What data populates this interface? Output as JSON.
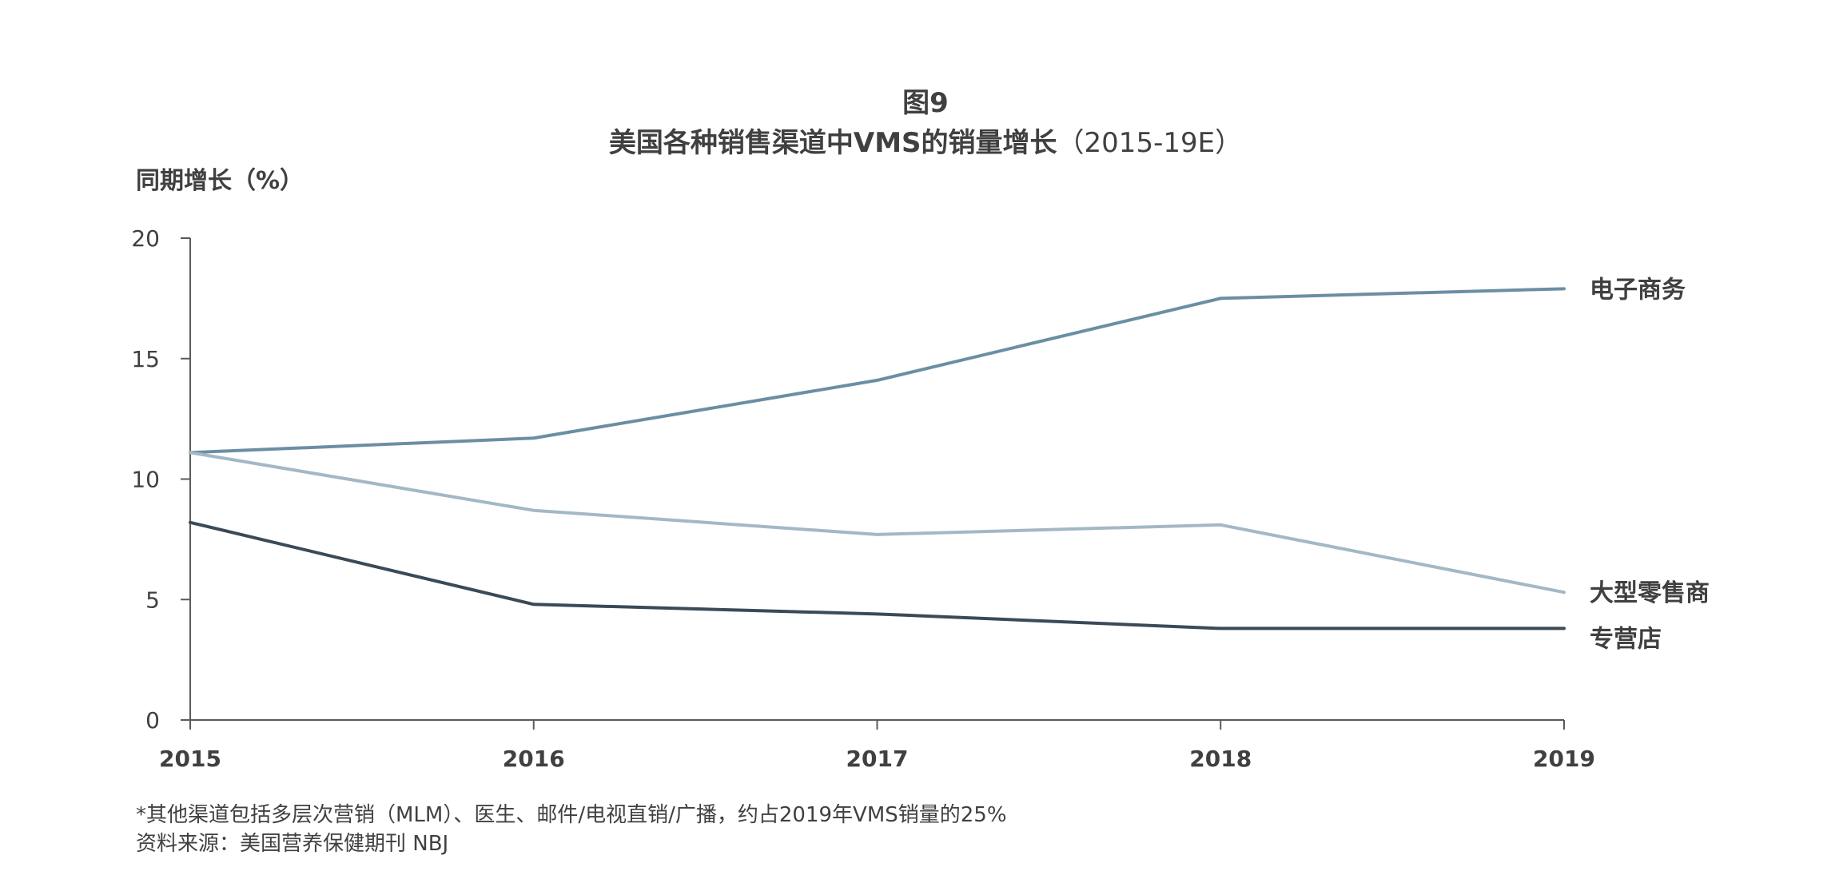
{
  "figure": {
    "label": "图9",
    "title_main": "美国各种销售渠道中VMS的销量增长",
    "title_suffix": "（2015-19E）",
    "footnote": "*其他渠道包括多层次营销（MLM）、医生、邮件/电视直销/广播，约占2019年VMS销量的25%",
    "source": "资料来源：美国营养保健期刊 NBJ"
  },
  "chart_data": {
    "type": "line",
    "title": "美国各种销售渠道中VMS的销量增长（2015-19E）",
    "xlabel": "",
    "ylabel": "同期增长（%）",
    "x": [
      "2015",
      "2016",
      "2017",
      "2018",
      "2019"
    ],
    "yticks": [
      "0",
      "5",
      "10",
      "15",
      "20"
    ],
    "ylim": [
      0,
      20
    ],
    "grid": false,
    "legend": "inline labels at right end of each line",
    "series": [
      {
        "name": "电子商务",
        "values": [
          11.1,
          11.7,
          14.1,
          17.5,
          17.9
        ],
        "color": "#6b8ea3"
      },
      {
        "name": "大型零售商",
        "values": [
          11.1,
          8.7,
          7.7,
          8.1,
          5.3
        ],
        "color": "#a3b8c6"
      },
      {
        "name": "专营店",
        "values": [
          8.2,
          4.8,
          4.4,
          3.8,
          3.8
        ],
        "color": "#3a4a57"
      }
    ]
  }
}
